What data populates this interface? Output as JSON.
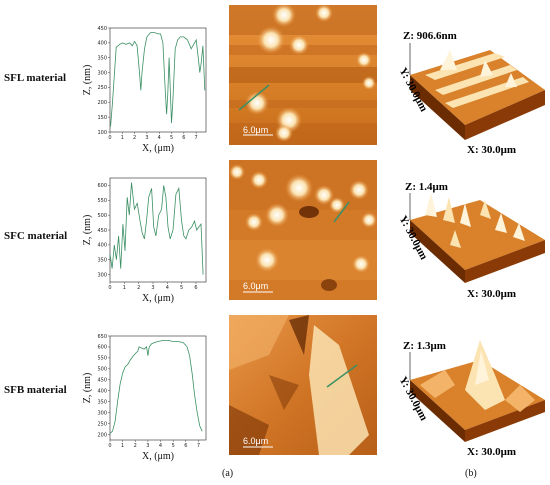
{
  "rows": [
    {
      "label": "SFL material",
      "profile": {
        "ylabel": "Z, (nm)",
        "xlabel": "X, (μm)",
        "yticks": [
          100,
          150,
          200,
          250,
          300,
          350,
          400,
          450
        ],
        "ylim": [
          100,
          450
        ],
        "xticks": [
          0,
          1,
          2,
          3,
          4,
          5,
          6,
          7
        ],
        "xlim": [
          0,
          7.8
        ],
        "points": [
          [
            0,
            120
          ],
          [
            0.05,
            120
          ],
          [
            0.2,
            200
          ],
          [
            0.5,
            385
          ],
          [
            0.8,
            395
          ],
          [
            1.0,
            400
          ],
          [
            1.3,
            395
          ],
          [
            1.6,
            400
          ],
          [
            1.8,
            390
          ],
          [
            2.0,
            405
          ],
          [
            2.2,
            390
          ],
          [
            2.4,
            300
          ],
          [
            2.5,
            240
          ],
          [
            2.6,
            300
          ],
          [
            2.8,
            380
          ],
          [
            3.0,
            420
          ],
          [
            3.3,
            435
          ],
          [
            3.6,
            435
          ],
          [
            3.9,
            430
          ],
          [
            4.1,
            430
          ],
          [
            4.3,
            400
          ],
          [
            4.5,
            230
          ],
          [
            4.6,
            160
          ],
          [
            4.7,
            230
          ],
          [
            4.8,
            350
          ],
          [
            4.9,
            240
          ],
          [
            5.0,
            130
          ],
          [
            5.1,
            200
          ],
          [
            5.3,
            380
          ],
          [
            5.5,
            410
          ],
          [
            5.7,
            420
          ],
          [
            6.0,
            420
          ],
          [
            6.3,
            410
          ],
          [
            6.6,
            380
          ],
          [
            6.8,
            395
          ],
          [
            7.0,
            410
          ],
          [
            7.2,
            340
          ],
          [
            7.3,
            300
          ],
          [
            7.4,
            330
          ],
          [
            7.55,
            390
          ],
          [
            7.7,
            240
          ]
        ]
      },
      "afm": {
        "scalebar": "6.0μm"
      },
      "view3d": {
        "z": "Z: 906.6nm",
        "y": "Y: 30.0μm",
        "x": "X: 30.0μm"
      }
    },
    {
      "label": "SFC material",
      "profile": {
        "ylabel": "Z, (nm)",
        "xlabel": "X, (μm)",
        "yticks": [
          300,
          350,
          400,
          450,
          500,
          550,
          600
        ],
        "ylim": [
          275,
          625
        ],
        "xticks": [
          0,
          1,
          2,
          3,
          4,
          5,
          6
        ],
        "xlim": [
          0,
          6.7
        ],
        "points": [
          [
            0,
            370
          ],
          [
            0.15,
            320
          ],
          [
            0.3,
            400
          ],
          [
            0.45,
            350
          ],
          [
            0.6,
            430
          ],
          [
            0.75,
            320
          ],
          [
            0.9,
            470
          ],
          [
            1.05,
            380
          ],
          [
            1.2,
            560
          ],
          [
            1.35,
            500
          ],
          [
            1.5,
            610
          ],
          [
            1.7,
            520
          ],
          [
            1.9,
            540
          ],
          [
            2.1,
            480
          ],
          [
            2.25,
            440
          ],
          [
            2.4,
            420
          ],
          [
            2.55,
            480
          ],
          [
            2.7,
            560
          ],
          [
            2.9,
            590
          ],
          [
            3.05,
            460
          ],
          [
            3.2,
            430
          ],
          [
            3.4,
            500
          ],
          [
            3.6,
            520
          ],
          [
            3.75,
            600
          ],
          [
            3.9,
            560
          ],
          [
            4.05,
            460
          ],
          [
            4.2,
            420
          ],
          [
            4.4,
            450
          ],
          [
            4.6,
            570
          ],
          [
            4.8,
            590
          ],
          [
            5.0,
            480
          ],
          [
            5.15,
            430
          ],
          [
            5.3,
            420
          ],
          [
            5.5,
            450
          ],
          [
            5.7,
            460
          ],
          [
            5.9,
            480
          ],
          [
            6.05,
            450
          ],
          [
            6.2,
            460
          ],
          [
            6.35,
            470
          ],
          [
            6.5,
            300
          ]
        ]
      },
      "afm": {
        "scalebar": "6.0μm"
      },
      "view3d": {
        "z": "Z: 1.4μm",
        "y": "Y: 30.0μm",
        "x": "X: 30.0μm"
      }
    },
    {
      "label": "SFB material",
      "profile": {
        "ylabel": "Z, (nm)",
        "xlabel": "X, (μm)",
        "yticks": [
          200,
          250,
          300,
          350,
          400,
          450,
          500,
          550,
          600,
          650
        ],
        "ylim": [
          175,
          650
        ],
        "xticks": [
          0,
          1,
          2,
          3,
          4,
          5,
          6,
          7
        ],
        "xlim": [
          0,
          7.6
        ],
        "points": [
          [
            0,
            205
          ],
          [
            0.2,
            215
          ],
          [
            0.4,
            260
          ],
          [
            0.6,
            350
          ],
          [
            0.8,
            430
          ],
          [
            1.0,
            480
          ],
          [
            1.2,
            510
          ],
          [
            1.4,
            520
          ],
          [
            1.6,
            540
          ],
          [
            1.8,
            555
          ],
          [
            2.0,
            570
          ],
          [
            2.2,
            580
          ],
          [
            2.3,
            600
          ],
          [
            2.5,
            595
          ],
          [
            2.7,
            590
          ],
          [
            2.9,
            600
          ],
          [
            3.0,
            560
          ],
          [
            3.1,
            600
          ],
          [
            3.3,
            615
          ],
          [
            3.5,
            620
          ],
          [
            3.8,
            625
          ],
          [
            4.2,
            630
          ],
          [
            4.6,
            630
          ],
          [
            5.0,
            625
          ],
          [
            5.4,
            625
          ],
          [
            5.8,
            620
          ],
          [
            6.1,
            600
          ],
          [
            6.3,
            560
          ],
          [
            6.5,
            480
          ],
          [
            6.7,
            380
          ],
          [
            6.9,
            300
          ],
          [
            7.1,
            240
          ],
          [
            7.3,
            215
          ]
        ]
      },
      "afm": {
        "scalebar": "6.0μm"
      },
      "view3d": {
        "z": "Z: 1.3μm",
        "y": "Y: 30.0μm",
        "x": "X: 30.0μm"
      }
    }
  ],
  "panels": {
    "a": "(a)",
    "b": "(b)"
  },
  "colors": {
    "line": "#3a8f63",
    "afm_dark": "#6b2c02",
    "afm_mid": "#d9822b",
    "afm_light": "#fbe3b2"
  }
}
